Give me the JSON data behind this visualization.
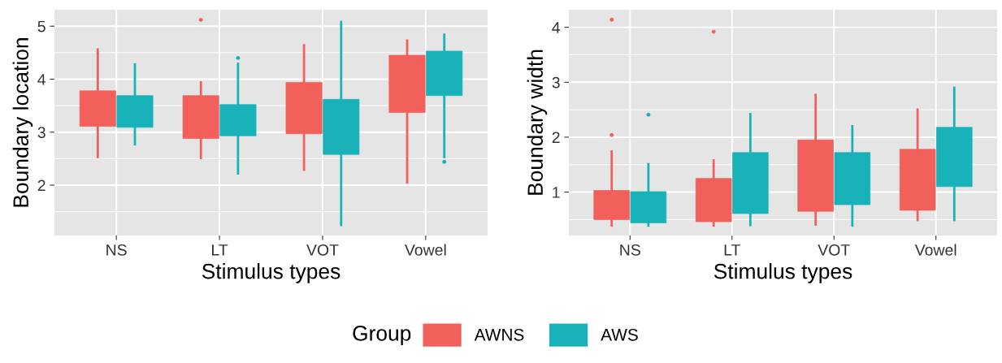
{
  "chart_data": [
    {
      "type": "box",
      "xlabel": "Stimulus types",
      "ylabel": "Boundary location",
      "categories": [
        "NS",
        "LT",
        "VOT",
        "Vowel"
      ],
      "ylim": [
        1.05,
        5.31
      ],
      "yticks": [
        2,
        3,
        4,
        5
      ],
      "grid": true,
      "legend": "bottom",
      "legend_title": "Group",
      "series": [
        {
          "name": "AWNS",
          "color": "#f2605b",
          "boxes": [
            {
              "low": 2.53,
              "q1": 3.11,
              "q3": 3.78,
              "high": 4.56
            },
            {
              "low": 2.51,
              "q1": 2.88,
              "q3": 3.69,
              "high": 3.94,
              "outliers": [
                5.12
              ]
            },
            {
              "low": 2.29,
              "q1": 2.97,
              "q3": 3.94,
              "high": 4.64
            },
            {
              "low": 2.05,
              "q1": 3.37,
              "q3": 4.45,
              "high": 4.73
            }
          ]
        },
        {
          "name": "AWS",
          "color": "#19b2b8",
          "boxes": [
            {
              "low": 2.77,
              "q1": 3.09,
              "q3": 3.69,
              "high": 4.28
            },
            {
              "low": 2.22,
              "q1": 2.93,
              "q3": 3.52,
              "high": 4.29,
              "outliers": [
                4.4
              ]
            },
            {
              "low": 1.25,
              "q1": 2.58,
              "q3": 3.62,
              "high": 5.08
            },
            {
              "low": 2.53,
              "q1": 3.69,
              "q3": 4.53,
              "high": 4.84,
              "outliers": [
                2.44
              ]
            }
          ]
        }
      ]
    },
    {
      "type": "box",
      "xlabel": "Stimulus types",
      "ylabel": "Boundary width",
      "categories": [
        "NS",
        "LT",
        "VOT",
        "Vowel"
      ],
      "ylim": [
        0.21,
        4.32
      ],
      "yticks": [
        1,
        2,
        3,
        4
      ],
      "grid": true,
      "series": [
        {
          "name": "AWNS",
          "color": "#f2605b",
          "boxes": [
            {
              "low": 0.39,
              "q1": 0.5,
              "q3": 1.03,
              "high": 1.74,
              "outliers": [
                4.14,
                2.04
              ]
            },
            {
              "low": 0.39,
              "q1": 0.46,
              "q3": 1.25,
              "high": 1.58,
              "outliers": [
                3.92
              ]
            },
            {
              "low": 0.41,
              "q1": 0.65,
              "q3": 1.95,
              "high": 2.77
            },
            {
              "low": 0.49,
              "q1": 0.67,
              "q3": 1.78,
              "high": 2.5
            }
          ]
        },
        {
          "name": "AWS",
          "color": "#19b2b8",
          "boxes": [
            {
              "low": 0.39,
              "q1": 0.44,
              "q3": 1.01,
              "high": 1.51,
              "outliers": [
                2.41
              ]
            },
            {
              "low": 0.4,
              "q1": 0.61,
              "q3": 1.72,
              "high": 2.42
            },
            {
              "low": 0.39,
              "q1": 0.77,
              "q3": 1.72,
              "high": 2.2
            },
            {
              "low": 0.49,
              "q1": 1.1,
              "q3": 2.18,
              "high": 2.9
            }
          ]
        }
      ]
    }
  ]
}
